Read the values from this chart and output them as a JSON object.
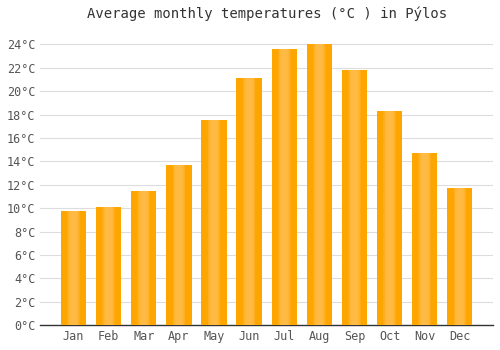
{
  "title": "Average monthly temperatures (°C ) in Pýlos",
  "months": [
    "Jan",
    "Feb",
    "Mar",
    "Apr",
    "May",
    "Jun",
    "Jul",
    "Aug",
    "Sep",
    "Oct",
    "Nov",
    "Dec"
  ],
  "values": [
    9.8,
    10.1,
    11.5,
    13.7,
    17.5,
    21.1,
    23.6,
    24.0,
    21.8,
    18.3,
    14.7,
    11.7
  ],
  "bar_color_main": "#FFA500",
  "bar_color_light": "#FFD080",
  "background_color": "#FFFFFF",
  "plot_bg_color": "#FFFFFF",
  "grid_color": "#DDDDDD",
  "ytick_labels": [
    "0°C",
    "2°C",
    "4°C",
    "6°C",
    "8°C",
    "10°C",
    "12°C",
    "14°C",
    "16°C",
    "18°C",
    "20°C",
    "22°C",
    "24°C"
  ],
  "ytick_values": [
    0,
    2,
    4,
    6,
    8,
    10,
    12,
    14,
    16,
    18,
    20,
    22,
    24
  ],
  "ylim": [
    0,
    25.5
  ],
  "title_fontsize": 10,
  "tick_fontsize": 8.5,
  "font_color": "#555555",
  "title_color": "#333333",
  "spine_color": "#333333"
}
